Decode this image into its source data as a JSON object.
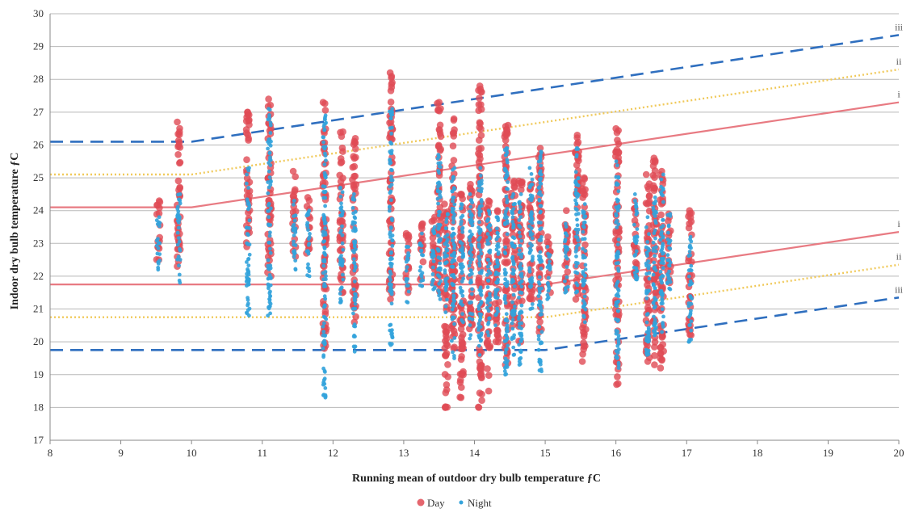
{
  "chart_data": {
    "type": "scatter",
    "xlabel": "Running mean of outdoor dry bulb temperature ƒC",
    "ylabel": "Indoor dry bulb temperature ƒC",
    "xlim": [
      8,
      20
    ],
    "ylim": [
      17,
      30
    ],
    "x_ticks": [
      "8",
      "9",
      "10",
      "11",
      "12",
      "13",
      "14",
      "15",
      "16",
      "17",
      "18",
      "19",
      "20"
    ],
    "y_ticks": [
      "17",
      "18",
      "19",
      "20",
      "21",
      "22",
      "23",
      "24",
      "25",
      "26",
      "27",
      "28",
      "29",
      "30"
    ],
    "grid": "horizontal",
    "legend_position": "bottom",
    "series": [
      {
        "name": "Day",
        "color": "#e04b55",
        "marker": "circle",
        "columns": [
          {
            "x": 9.53,
            "ymin": 22.5,
            "ymax": 24.3
          },
          {
            "x": 9.82,
            "ymin": 22.3,
            "ymax": 26.7
          },
          {
            "x": 10.8,
            "ymin": 22.9,
            "ymax": 27.0
          },
          {
            "x": 11.1,
            "ymin": 22.0,
            "ymax": 27.4
          },
          {
            "x": 11.45,
            "ymin": 22.6,
            "ymax": 25.2
          },
          {
            "x": 11.65,
            "ymin": 22.7,
            "ymax": 24.4
          },
          {
            "x": 11.88,
            "ymin": 19.8,
            "ymax": 27.3
          },
          {
            "x": 12.12,
            "ymin": 21.5,
            "ymax": 26.4
          },
          {
            "x": 12.3,
            "ymin": 20.6,
            "ymax": 26.2
          },
          {
            "x": 12.82,
            "ymin": 21.3,
            "ymax": 28.2
          },
          {
            "x": 13.05,
            "ymin": 21.5,
            "ymax": 23.3
          },
          {
            "x": 13.25,
            "ymin": 21.9,
            "ymax": 23.6
          },
          {
            "x": 13.42,
            "ymin": 21.8,
            "ymax": 23.8
          },
          {
            "x": 13.5,
            "ymin": 21.5,
            "ymax": 27.3
          },
          {
            "x": 13.6,
            "ymin": 18.0,
            "ymax": 24.2
          },
          {
            "x": 13.7,
            "ymin": 19.8,
            "ymax": 26.8
          },
          {
            "x": 13.82,
            "ymin": 18.3,
            "ymax": 24.5
          },
          {
            "x": 13.95,
            "ymin": 20.4,
            "ymax": 24.8
          },
          {
            "x": 14.08,
            "ymin": 18.0,
            "ymax": 27.8
          },
          {
            "x": 14.2,
            "ymin": 18.5,
            "ymax": 24.3
          },
          {
            "x": 14.32,
            "ymin": 20.0,
            "ymax": 24.0
          },
          {
            "x": 14.45,
            "ymin": 19.3,
            "ymax": 26.6
          },
          {
            "x": 14.55,
            "ymin": 20.5,
            "ymax": 24.9
          },
          {
            "x": 14.65,
            "ymin": 20.0,
            "ymax": 24.9
          },
          {
            "x": 14.8,
            "ymin": 21.3,
            "ymax": 24.8
          },
          {
            "x": 14.93,
            "ymin": 20.3,
            "ymax": 25.9
          },
          {
            "x": 15.05,
            "ymin": 21.5,
            "ymax": 23.2
          },
          {
            "x": 15.3,
            "ymin": 21.6,
            "ymax": 24.0
          },
          {
            "x": 15.45,
            "ymin": 21.3,
            "ymax": 26.3
          },
          {
            "x": 15.55,
            "ymin": 19.4,
            "ymax": 25.0
          },
          {
            "x": 16.02,
            "ymin": 18.7,
            "ymax": 26.5
          },
          {
            "x": 16.28,
            "ymin": 22.0,
            "ymax": 24.3
          },
          {
            "x": 16.45,
            "ymin": 19.4,
            "ymax": 25.1
          },
          {
            "x": 16.55,
            "ymin": 19.3,
            "ymax": 25.6
          },
          {
            "x": 16.65,
            "ymin": 19.2,
            "ymax": 25.2
          },
          {
            "x": 16.75,
            "ymin": 21.8,
            "ymax": 23.9
          },
          {
            "x": 17.05,
            "ymin": 20.2,
            "ymax": 24.0
          }
        ]
      },
      {
        "name": "Night",
        "color": "#33a3db",
        "marker": "dot",
        "columns": [
          {
            "x": 9.53,
            "ymin": 22.2,
            "ymax": 23.8
          },
          {
            "x": 9.82,
            "ymin": 21.8,
            "ymax": 24.5
          },
          {
            "x": 10.8,
            "ymin": 20.8,
            "ymax": 25.3
          },
          {
            "x": 11.1,
            "ymin": 20.8,
            "ymax": 27.1
          },
          {
            "x": 11.45,
            "ymin": 22.2,
            "ymax": 24.3
          },
          {
            "x": 11.65,
            "ymin": 22.0,
            "ymax": 24.0
          },
          {
            "x": 11.88,
            "ymin": 18.3,
            "ymax": 26.9
          },
          {
            "x": 12.12,
            "ymin": 21.2,
            "ymax": 24.7
          },
          {
            "x": 12.3,
            "ymin": 19.7,
            "ymax": 24.5
          },
          {
            "x": 12.82,
            "ymin": 19.9,
            "ymax": 27.1
          },
          {
            "x": 13.05,
            "ymin": 21.2,
            "ymax": 22.9
          },
          {
            "x": 13.25,
            "ymin": 21.7,
            "ymax": 23.3
          },
          {
            "x": 13.42,
            "ymin": 21.6,
            "ymax": 23.5
          },
          {
            "x": 13.5,
            "ymin": 21.3,
            "ymax": 25.7
          },
          {
            "x": 13.6,
            "ymin": 20.9,
            "ymax": 23.9
          },
          {
            "x": 13.7,
            "ymin": 19.5,
            "ymax": 25.3
          },
          {
            "x": 13.82,
            "ymin": 20.6,
            "ymax": 24.2
          },
          {
            "x": 13.95,
            "ymin": 20.1,
            "ymax": 24.5
          },
          {
            "x": 14.08,
            "ymin": 19.6,
            "ymax": 25.3
          },
          {
            "x": 14.2,
            "ymin": 20.2,
            "ymax": 24.0
          },
          {
            "x": 14.32,
            "ymin": 20.5,
            "ymax": 23.8
          },
          {
            "x": 14.45,
            "ymin": 19.0,
            "ymax": 25.9
          },
          {
            "x": 14.55,
            "ymin": 19.6,
            "ymax": 24.5
          },
          {
            "x": 14.65,
            "ymin": 19.3,
            "ymax": 24.5
          },
          {
            "x": 14.8,
            "ymin": 21.0,
            "ymax": 25.3
          },
          {
            "x": 14.93,
            "ymin": 19.1,
            "ymax": 25.8
          },
          {
            "x": 15.05,
            "ymin": 21.3,
            "ymax": 22.9
          },
          {
            "x": 15.3,
            "ymin": 21.5,
            "ymax": 23.6
          },
          {
            "x": 15.45,
            "ymin": 21.5,
            "ymax": 25.9
          },
          {
            "x": 15.55,
            "ymin": 20.6,
            "ymax": 24.2
          },
          {
            "x": 16.02,
            "ymin": 19.2,
            "ymax": 25.5
          },
          {
            "x": 16.28,
            "ymin": 21.9,
            "ymax": 24.5
          },
          {
            "x": 16.45,
            "ymin": 19.6,
            "ymax": 23.8
          },
          {
            "x": 16.55,
            "ymin": 20.2,
            "ymax": 24.4
          },
          {
            "x": 16.65,
            "ymin": 20.3,
            "ymax": 25.1
          },
          {
            "x": 16.75,
            "ymin": 21.6,
            "ymax": 23.9
          },
          {
            "x": 17.05,
            "ymin": 20.0,
            "ymax": 23.2
          }
        ]
      }
    ],
    "lines": [
      {
        "label": "iii",
        "style": "dashed",
        "color": "#2f6fbf",
        "points": [
          [
            8,
            26.1
          ],
          [
            10,
            26.1
          ],
          [
            20,
            29.35
          ]
        ]
      },
      {
        "label": "ii",
        "style": "dotted",
        "color": "#f0c95a",
        "points": [
          [
            8,
            25.1
          ],
          [
            10,
            25.1
          ],
          [
            20,
            28.3
          ]
        ]
      },
      {
        "label": "i",
        "style": "solid",
        "color": "#e87a82",
        "points": [
          [
            8,
            24.1
          ],
          [
            10,
            24.1
          ],
          [
            20,
            27.3
          ]
        ]
      },
      {
        "label": "i",
        "style": "solid",
        "color": "#e87a82",
        "points": [
          [
            8,
            21.75
          ],
          [
            15,
            21.75
          ],
          [
            20,
            23.35
          ]
        ]
      },
      {
        "label": "ii",
        "style": "dotted",
        "color": "#f0c95a",
        "points": [
          [
            8,
            20.75
          ],
          [
            15,
            20.75
          ],
          [
            20,
            22.35
          ]
        ]
      },
      {
        "label": "iii",
        "style": "dashed",
        "color": "#2f6fbf",
        "points": [
          [
            8,
            19.75
          ],
          [
            15,
            19.75
          ],
          [
            20,
            21.35
          ]
        ]
      }
    ]
  }
}
